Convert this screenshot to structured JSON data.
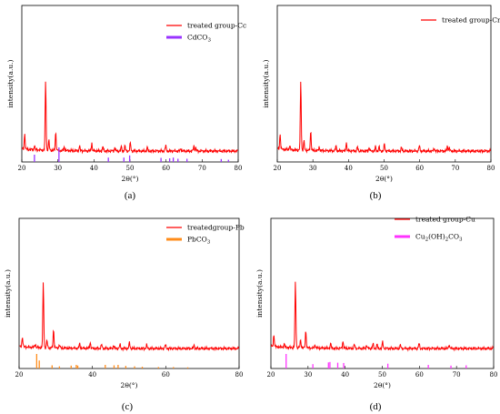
{
  "colors": {
    "treated": "#ff0000",
    "cdco3": "#9933ff",
    "pbco3": "#ff8c1a",
    "cu2": "#ff33ff"
  },
  "chart_data": [
    {
      "type": "line",
      "caption": "(a)",
      "xlabel": "2θ(°)",
      "ylabel": "intensity(a.u.)",
      "xlim": [
        20,
        80
      ],
      "xticks": [
        "20",
        "30",
        "40",
        "50",
        "60",
        "70",
        "80"
      ],
      "series": [
        {
          "name": "treated group-Cc",
          "peaks": [
            [
              20.8,
              0.22
            ],
            [
              23.5,
              0.06
            ],
            [
              26.6,
              1.0
            ],
            [
              27.5,
              0.14
            ],
            [
              29.4,
              0.26
            ],
            [
              31.8,
              0.05
            ],
            [
              36.0,
              0.07
            ],
            [
              39.4,
              0.11
            ],
            [
              42.5,
              0.06
            ],
            [
              45.8,
              0.05
            ],
            [
              47.6,
              0.06
            ],
            [
              48.6,
              0.07
            ],
            [
              50.1,
              0.12
            ],
            [
              54.8,
              0.05
            ],
            [
              59.9,
              0.08
            ],
            [
              64.1,
              0.04
            ],
            [
              67.7,
              0.07
            ],
            [
              68.2,
              0.05
            ]
          ]
        },
        {
          "name": "CdCO3",
          "sticks": [
            [
              23.5,
              0.5
            ],
            [
              30.3,
              1.0
            ],
            [
              44.0,
              0.3
            ],
            [
              48.3,
              0.3
            ],
            [
              49.9,
              0.45
            ],
            [
              58.6,
              0.28
            ],
            [
              61.0,
              0.25
            ],
            [
              62.0,
              0.3
            ],
            [
              63.3,
              0.22
            ],
            [
              65.8,
              0.22
            ],
            [
              75.3,
              0.2
            ],
            [
              77.3,
              0.15
            ]
          ]
        }
      ]
    },
    {
      "type": "line",
      "caption": "(b)",
      "xlabel": "2θ(°)",
      "ylabel": "intensity(a.u.)",
      "xlim": [
        20,
        80
      ],
      "xticks": [
        "20",
        "30",
        "40",
        "50",
        "60",
        "70",
        "80"
      ],
      "series": [
        {
          "name": "treated group-Cr",
          "peaks": [
            [
              20.8,
              0.22
            ],
            [
              23.5,
              0.06
            ],
            [
              26.6,
              1.0
            ],
            [
              27.5,
              0.13
            ],
            [
              29.4,
              0.28
            ],
            [
              31.8,
              0.05
            ],
            [
              36.5,
              0.07
            ],
            [
              39.4,
              0.12
            ],
            [
              42.5,
              0.06
            ],
            [
              45.8,
              0.05
            ],
            [
              47.6,
              0.06
            ],
            [
              48.6,
              0.06
            ],
            [
              50.1,
              0.1
            ],
            [
              54.9,
              0.05
            ],
            [
              59.9,
              0.08
            ],
            [
              64.1,
              0.04
            ],
            [
              67.8,
              0.07
            ],
            [
              68.3,
              0.05
            ]
          ]
        }
      ]
    },
    {
      "type": "line",
      "caption": "(c)",
      "xlabel": "2θ(°)",
      "ylabel": "intensity(a.u.)",
      "xlim": [
        20,
        80
      ],
      "xticks": [
        "20",
        "40",
        "60",
        "80"
      ],
      "series": [
        {
          "name": "treatedgroup-Pb",
          "peaks": [
            [
              20.9,
              0.15
            ],
            [
              24.4,
              0.05
            ],
            [
              26.6,
              1.0
            ],
            [
              27.6,
              0.11
            ],
            [
              29.4,
              0.28
            ],
            [
              31.0,
              0.05
            ],
            [
              36.5,
              0.07
            ],
            [
              39.4,
              0.09
            ],
            [
              42.5,
              0.06
            ],
            [
              45.8,
              0.05
            ],
            [
              47.5,
              0.06
            ],
            [
              50.1,
              0.09
            ],
            [
              54.8,
              0.05
            ],
            [
              59.9,
              0.06
            ],
            [
              67.7,
              0.05
            ]
          ]
        },
        {
          "name": "PbCO3",
          "sticks": [
            [
              24.8,
              1.0
            ],
            [
              25.5,
              0.55
            ],
            [
              29.0,
              0.22
            ],
            [
              31.0,
              0.15
            ],
            [
              34.2,
              0.2
            ],
            [
              35.6,
              0.25
            ],
            [
              36.0,
              0.2
            ],
            [
              43.5,
              0.25
            ],
            [
              45.9,
              0.22
            ],
            [
              47.0,
              0.25
            ],
            [
              49.1,
              0.18
            ],
            [
              51.5,
              0.15
            ],
            [
              53.6,
              0.12
            ],
            [
              58.0,
              0.1
            ],
            [
              62.1,
              0.1
            ],
            [
              66.0,
              0.08
            ]
          ]
        }
      ]
    },
    {
      "type": "line",
      "caption": "(d)",
      "xlabel": "2θ(°)",
      "ylabel": "intensity(a.u.)",
      "xlim": [
        20,
        80
      ],
      "xticks": [
        "20",
        "30",
        "40",
        "50",
        "60",
        "70",
        "80"
      ],
      "series": [
        {
          "name": "treated group-Cu",
          "peaks": [
            [
              20.8,
              0.18
            ],
            [
              23.6,
              0.05
            ],
            [
              26.6,
              1.0
            ],
            [
              28.0,
              0.12
            ],
            [
              29.4,
              0.26
            ],
            [
              31.9,
              0.05
            ],
            [
              36.1,
              0.07
            ],
            [
              39.4,
              0.11
            ],
            [
              42.5,
              0.06
            ],
            [
              45.8,
              0.05
            ],
            [
              47.5,
              0.07
            ],
            [
              48.6,
              0.06
            ],
            [
              50.1,
              0.1
            ],
            [
              54.9,
              0.05
            ],
            [
              59.9,
              0.08
            ],
            [
              68.0,
              0.06
            ]
          ]
        },
        {
          "name": "Cu2(OH)2CO3",
          "sticks": [
            [
              24.1,
              1.0
            ],
            [
              31.3,
              0.3
            ],
            [
              35.5,
              0.42
            ],
            [
              35.9,
              0.45
            ],
            [
              38.0,
              0.4
            ],
            [
              39.6,
              0.38
            ],
            [
              51.5,
              0.33
            ],
            [
              62.4,
              0.25
            ],
            [
              68.5,
              0.2
            ],
            [
              72.6,
              0.22
            ]
          ]
        }
      ]
    }
  ],
  "legends": {
    "a": [
      {
        "label": "treated group-Cc",
        "kind": "line",
        "color": "#ff0000"
      },
      {
        "label": "CdCO",
        "sub": "3",
        "kind": "bar",
        "color": "#9933ff"
      }
    ],
    "b": [
      {
        "label": "treated group-Cr",
        "kind": "line",
        "color": "#ff0000"
      }
    ],
    "c": [
      {
        "label": "treatedgroup-Pb",
        "kind": "line",
        "color": "#ff0000"
      },
      {
        "label": "PbCO",
        "sub": "3",
        "kind": "bar",
        "color": "#ff8c1a"
      }
    ],
    "d": [
      {
        "label": "treated group-Cu",
        "kind": "line",
        "color": "#ff0000"
      },
      {
        "label": "Cu",
        "parts": [
          "Cu",
          "2",
          "(OH)",
          "2",
          "CO",
          "3"
        ],
        "kind": "bar",
        "color": "#ff33ff"
      }
    ]
  }
}
